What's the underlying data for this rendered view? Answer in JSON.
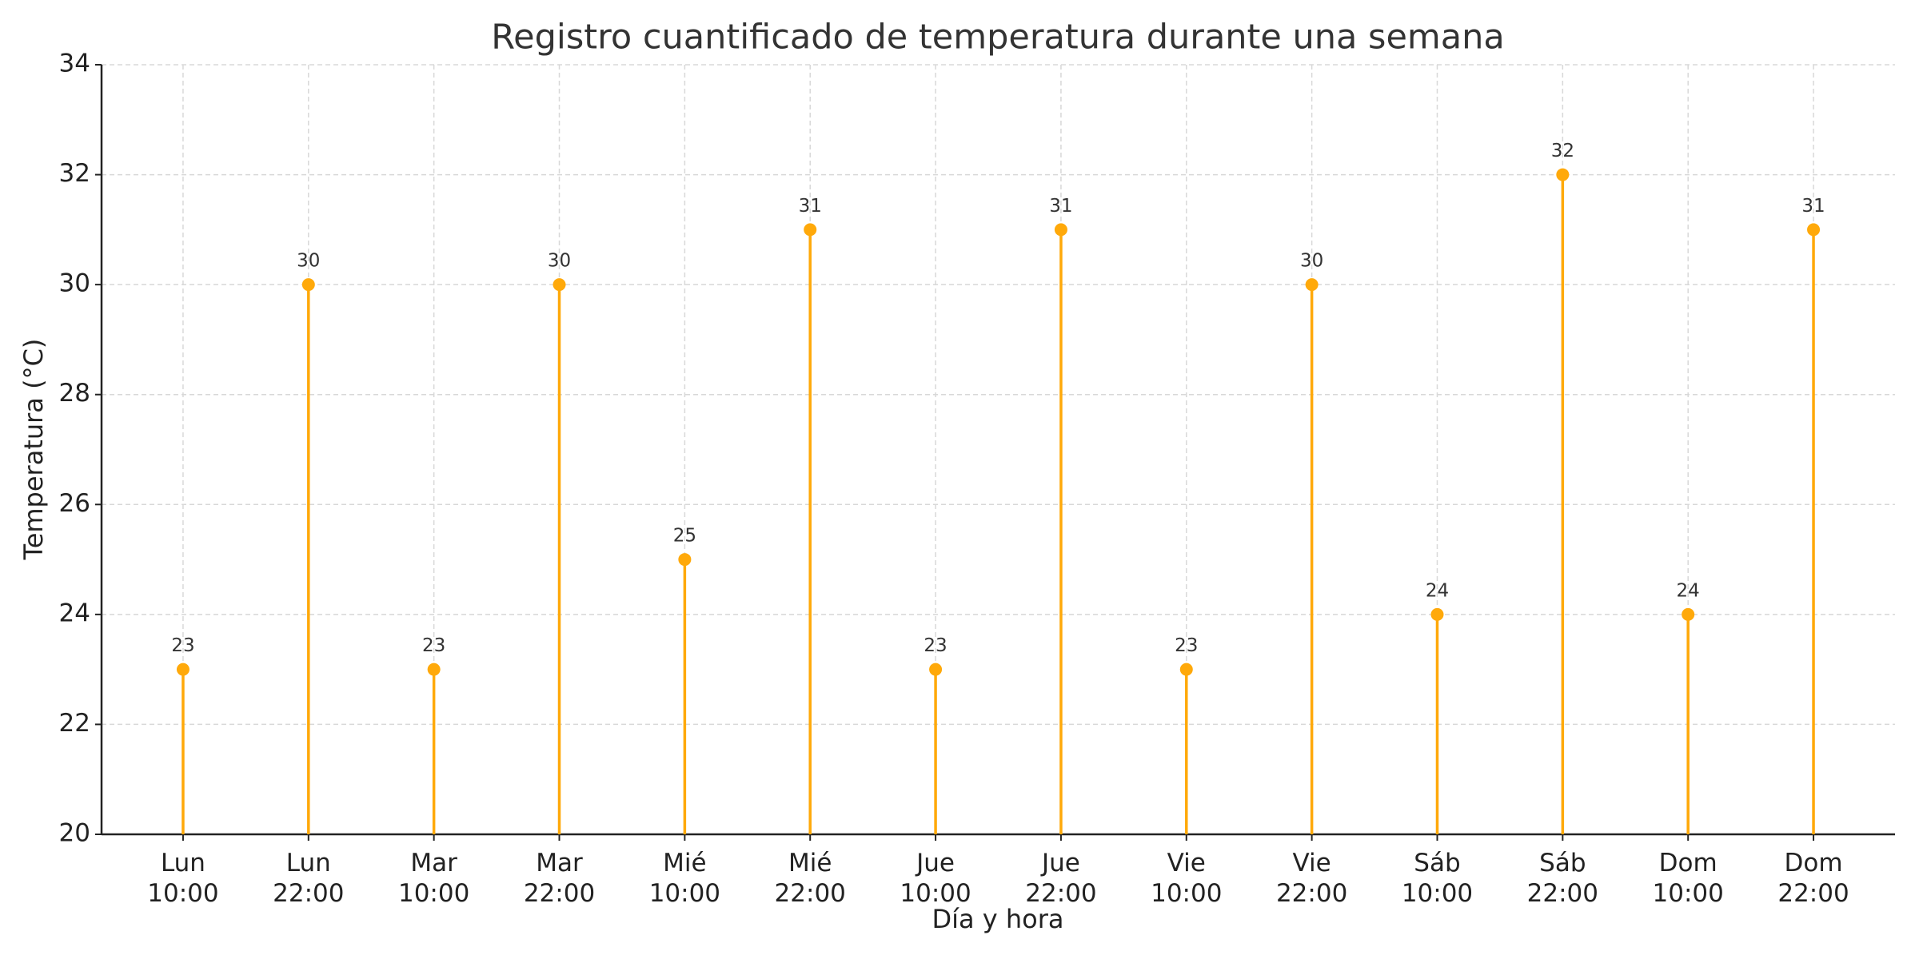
{
  "chart_data": {
    "type": "stem",
    "title": "Registro cuantificado de temperatura durante una semana",
    "x_label": "Día y hora",
    "y_label": "Temperatura (°C)",
    "categories": [
      "Lun\n10:00",
      "Lun\n22:00",
      "Mar\n10:00",
      "Mar\n22:00",
      "Mié\n10:00",
      "Mié\n22:00",
      "Jue\n10:00",
      "Jue\n22:00",
      "Vie\n10:00",
      "Vie\n22:00",
      "Sáb\n10:00",
      "Sáb\n22:00",
      "Dom\n10:00",
      "Dom\n22:00"
    ],
    "values": [
      23,
      30,
      23,
      30,
      25,
      31,
      23,
      31,
      23,
      30,
      24,
      32,
      24,
      31
    ],
    "color": "#ffa90a",
    "ylim": [
      20,
      34
    ],
    "yticks": [
      20,
      22,
      24,
      26,
      28,
      30,
      32,
      34
    ],
    "grid": true
  }
}
